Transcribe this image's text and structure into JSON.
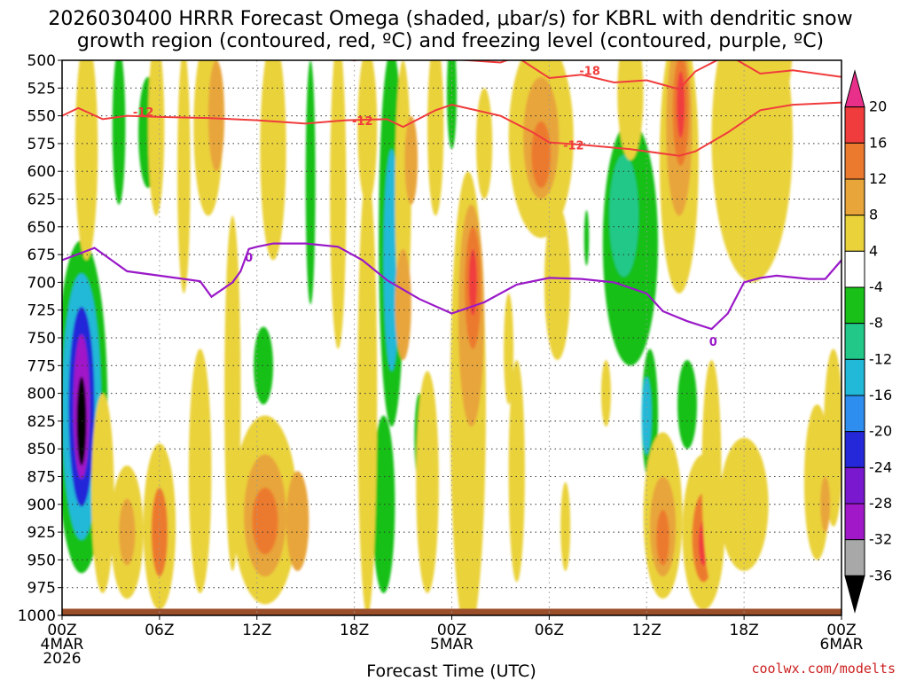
{
  "chart_data": {
    "type": "time-height contour",
    "title_line1": "2026030400 HRRR Forecast Omega (shaded, μbar/s) for KBRL with dendritic snow",
    "title_line2": "growth region (contoured, red, ºC) and freezing level (contoured, purple, ºC)",
    "xlabel": "Forecast Time (UTC)",
    "credit": "coolwx.com/modelts",
    "xlim": [
      0,
      48
    ],
    "ylim": [
      500,
      1000
    ],
    "y_ticks": [
      500,
      525,
      550,
      575,
      600,
      625,
      650,
      675,
      700,
      725,
      750,
      775,
      800,
      825,
      850,
      875,
      900,
      925,
      950,
      975,
      1000
    ],
    "x_ticks": [
      {
        "hour": 0,
        "line1": "00Z",
        "line2": "4MAR",
        "line3": "2026"
      },
      {
        "hour": 6,
        "line1": "06Z"
      },
      {
        "hour": 12,
        "line1": "12Z"
      },
      {
        "hour": 18,
        "line1": "18Z"
      },
      {
        "hour": 24,
        "line1": "00Z",
        "line2": "5MAR"
      },
      {
        "hour": 30,
        "line1": "06Z"
      },
      {
        "hour": 36,
        "line1": "12Z"
      },
      {
        "hour": 42,
        "line1": "18Z"
      },
      {
        "hour": 48,
        "line1": "00Z",
        "line2": "6MAR"
      }
    ],
    "colorbar": {
      "labels": [
        "20",
        "16",
        "12",
        "8",
        "4",
        "-4",
        "-8",
        "-12",
        "-16",
        "-20",
        "-24",
        "-28",
        "-32",
        "-36"
      ],
      "bins": [
        {
          "from": 20,
          "to": 24,
          "color": "#e8308a"
        },
        {
          "from": 16,
          "to": 20,
          "color": "#f03c3c"
        },
        {
          "from": 12,
          "to": 16,
          "color": "#ec7a2e"
        },
        {
          "from": 8,
          "to": 12,
          "color": "#e8a53a"
        },
        {
          "from": 4,
          "to": 8,
          "color": "#ead23a"
        },
        {
          "from": -4,
          "to": 4,
          "color": "#ffffff"
        },
        {
          "from": -8,
          "to": -4,
          "color": "#18c018"
        },
        {
          "from": -12,
          "to": -8,
          "color": "#22c888"
        },
        {
          "from": -16,
          "to": -12,
          "color": "#22b8d8"
        },
        {
          "from": -20,
          "to": -16,
          "color": "#2e8ef0"
        },
        {
          "from": -24,
          "to": -20,
          "color": "#2428d8"
        },
        {
          "from": -28,
          "to": -24,
          "color": "#7a18d0"
        },
        {
          "from": -32,
          "to": -28,
          "color": "#a018c8"
        },
        {
          "from": -36,
          "to": -32,
          "color": "#a8a8a8"
        },
        {
          "from": -40,
          "to": -36,
          "color": "#000000"
        }
      ]
    },
    "omega_regions": [
      {
        "hour": 1.2,
        "p": 812,
        "dh": 1.6,
        "dp": 150,
        "value": -8
      },
      {
        "hour": 1.2,
        "p": 812,
        "dh": 1.2,
        "dp": 120,
        "value": -16
      },
      {
        "hour": 1.2,
        "p": 812,
        "dh": 0.8,
        "dp": 90,
        "value": -24
      },
      {
        "hour": 1.2,
        "p": 812,
        "dh": 0.5,
        "dp": 65,
        "value": -32
      },
      {
        "hour": 1.2,
        "p": 825,
        "dh": 0.3,
        "dp": 40,
        "value": -40
      },
      {
        "hour": 3.5,
        "p": 560,
        "dh": 0.4,
        "dp": 70,
        "value": -6
      },
      {
        "hour": 5.3,
        "p": 565,
        "dh": 0.6,
        "dp": 50,
        "value": -6
      },
      {
        "hour": 12.4,
        "p": 775,
        "dh": 0.6,
        "dp": 35,
        "value": -6
      },
      {
        "hour": 15.3,
        "p": 610,
        "dh": 0.3,
        "dp": 110,
        "value": -6
      },
      {
        "hour": 20.3,
        "p": 660,
        "dh": 0.8,
        "dp": 170,
        "value": -8
      },
      {
        "hour": 20.3,
        "p": 680,
        "dh": 0.5,
        "dp": 100,
        "value": -14
      },
      {
        "hour": 19.8,
        "p": 900,
        "dh": 0.7,
        "dp": 80,
        "value": -6
      },
      {
        "hour": 22.0,
        "p": 840,
        "dh": 0.3,
        "dp": 40,
        "value": -6
      },
      {
        "hour": 24.0,
        "p": 530,
        "dh": 0.3,
        "dp": 50,
        "value": -6
      },
      {
        "hour": 35.0,
        "p": 665,
        "dh": 1.7,
        "dp": 110,
        "value": -6
      },
      {
        "hour": 34.6,
        "p": 640,
        "dh": 0.9,
        "dp": 55,
        "value": -10
      },
      {
        "hour": 36.2,
        "p": 820,
        "dh": 0.5,
        "dp": 60,
        "value": -6
      },
      {
        "hour": 36.0,
        "p": 820,
        "dh": 0.3,
        "dp": 35,
        "value": -14
      },
      {
        "hour": 38.5,
        "p": 810,
        "dh": 0.6,
        "dp": 40,
        "value": -6
      },
      {
        "hour": 32.3,
        "p": 660,
        "dh": 0.15,
        "dp": 25,
        "value": -6
      },
      {
        "hour": 1.5,
        "p": 580,
        "dh": 0.7,
        "dp": 100,
        "value": 6
      },
      {
        "hour": 2.5,
        "p": 890,
        "dh": 0.7,
        "dp": 90,
        "value": 6
      },
      {
        "hour": 5.8,
        "p": 560,
        "dh": 0.5,
        "dp": 80,
        "value": 6
      },
      {
        "hour": 4.0,
        "p": 925,
        "dh": 1.0,
        "dp": 60,
        "value": 6
      },
      {
        "hour": 4.0,
        "p": 925,
        "dh": 0.5,
        "dp": 30,
        "value": 10
      },
      {
        "hour": 6.0,
        "p": 920,
        "dh": 1.0,
        "dp": 75,
        "value": 6
      },
      {
        "hour": 6.0,
        "p": 925,
        "dh": 0.5,
        "dp": 40,
        "value": 12
      },
      {
        "hour": 7.5,
        "p": 600,
        "dh": 0.4,
        "dp": 110,
        "value": 6
      },
      {
        "hour": 9.0,
        "p": 560,
        "dh": 0.9,
        "dp": 80,
        "value": 6
      },
      {
        "hour": 9.5,
        "p": 550,
        "dh": 0.5,
        "dp": 50,
        "value": 10
      },
      {
        "hour": 8.5,
        "p": 870,
        "dh": 0.7,
        "dp": 110,
        "value": 6
      },
      {
        "hour": 10.5,
        "p": 800,
        "dh": 0.5,
        "dp": 160,
        "value": 6
      },
      {
        "hour": 13.0,
        "p": 580,
        "dh": 0.8,
        "dp": 100,
        "value": 6
      },
      {
        "hour": 12.5,
        "p": 905,
        "dh": 2.0,
        "dp": 85,
        "value": 6
      },
      {
        "hour": 12.5,
        "p": 910,
        "dh": 1.3,
        "dp": 55,
        "value": 10
      },
      {
        "hour": 12.5,
        "p": 915,
        "dh": 0.8,
        "dp": 30,
        "value": 14
      },
      {
        "hour": 14.5,
        "p": 915,
        "dh": 0.7,
        "dp": 45,
        "value": 10
      },
      {
        "hour": 17.0,
        "p": 620,
        "dh": 0.5,
        "dp": 140,
        "value": 6
      },
      {
        "hour": 18.8,
        "p": 800,
        "dh": 0.6,
        "dp": 200,
        "value": 6
      },
      {
        "hour": 18.8,
        "p": 560,
        "dh": 0.6,
        "dp": 70,
        "value": 6
      },
      {
        "hour": 21.0,
        "p": 620,
        "dh": 0.5,
        "dp": 120,
        "value": 6
      },
      {
        "hour": 21.5,
        "p": 590,
        "dh": 0.4,
        "dp": 40,
        "value": 10
      },
      {
        "hour": 21.0,
        "p": 720,
        "dh": 0.5,
        "dp": 50,
        "value": 10
      },
      {
        "hour": 23.0,
        "p": 560,
        "dh": 0.5,
        "dp": 80,
        "value": 6
      },
      {
        "hour": 22.5,
        "p": 880,
        "dh": 0.7,
        "dp": 100,
        "value": 6
      },
      {
        "hour": 25.0,
        "p": 810,
        "dh": 1.1,
        "dp": 210,
        "value": 6
      },
      {
        "hour": 25.2,
        "p": 730,
        "dh": 0.8,
        "dp": 100,
        "value": 10
      },
      {
        "hour": 25.3,
        "p": 705,
        "dh": 0.5,
        "dp": 55,
        "value": 14
      },
      {
        "hour": 25.3,
        "p": 700,
        "dh": 0.25,
        "dp": 30,
        "value": 18
      },
      {
        "hour": 26.0,
        "p": 575,
        "dh": 0.5,
        "dp": 50,
        "value": 6
      },
      {
        "hour": 29.5,
        "p": 570,
        "dh": 2.0,
        "dp": 90,
        "value": 6
      },
      {
        "hour": 29.5,
        "p": 570,
        "dh": 1.1,
        "dp": 55,
        "value": 10
      },
      {
        "hour": 29.5,
        "p": 585,
        "dh": 0.6,
        "dp": 30,
        "value": 14
      },
      {
        "hour": 30.5,
        "p": 700,
        "dh": 0.8,
        "dp": 70,
        "value": 6
      },
      {
        "hour": 28.0,
        "p": 870,
        "dh": 0.5,
        "dp": 100,
        "value": 6
      },
      {
        "hour": 31.0,
        "p": 920,
        "dh": 0.3,
        "dp": 40,
        "value": 6
      },
      {
        "hour": 35.0,
        "p": 530,
        "dh": 0.8,
        "dp": 60,
        "value": 6
      },
      {
        "hour": 38.0,
        "p": 590,
        "dh": 1.2,
        "dp": 120,
        "value": 6
      },
      {
        "hour": 38.0,
        "p": 560,
        "dh": 0.8,
        "dp": 80,
        "value": 10
      },
      {
        "hour": 38.1,
        "p": 545,
        "dh": 0.5,
        "dp": 50,
        "value": 14
      },
      {
        "hour": 38.1,
        "p": 540,
        "dh": 0.25,
        "dp": 30,
        "value": 18
      },
      {
        "hour": 37.0,
        "p": 910,
        "dh": 1.2,
        "dp": 75,
        "value": 6
      },
      {
        "hour": 37.0,
        "p": 920,
        "dh": 0.8,
        "dp": 45,
        "value": 10
      },
      {
        "hour": 37.0,
        "p": 930,
        "dh": 0.4,
        "dp": 25,
        "value": 14
      },
      {
        "hour": 39.5,
        "p": 925,
        "dh": 1.3,
        "dp": 70,
        "value": 6
      },
      {
        "hour": 39.5,
        "p": 930,
        "dh": 0.7,
        "dp": 40,
        "value": 12
      },
      {
        "hour": 39.5,
        "p": 935,
        "dh": 0.3,
        "dp": 20,
        "value": 18
      },
      {
        "hour": 40.0,
        "p": 870,
        "dh": 0.6,
        "dp": 100,
        "value": 6
      },
      {
        "hour": 42.5,
        "p": 570,
        "dh": 2.5,
        "dp": 130,
        "value": 6
      },
      {
        "hour": 43.5,
        "p": 480,
        "dh": 1.5,
        "dp": 80,
        "value": 6
      },
      {
        "hour": 42.0,
        "p": 900,
        "dh": 1.5,
        "dp": 60,
        "value": 6
      },
      {
        "hour": 46.5,
        "p": 880,
        "dh": 0.8,
        "dp": 70,
        "value": 6
      },
      {
        "hour": 47.5,
        "p": 840,
        "dh": 0.6,
        "dp": 80,
        "value": 6
      },
      {
        "hour": 47.0,
        "p": 900,
        "dh": 0.3,
        "dp": 25,
        "value": 10
      },
      {
        "hour": 27.5,
        "p": 760,
        "dh": 0.3,
        "dp": 50,
        "value": 6
      },
      {
        "hour": 33.5,
        "p": 800,
        "dh": 0.3,
        "dp": 30,
        "value": 6
      }
    ],
    "dgz_contours": [
      {
        "label": "-12",
        "label_at": [
          5.0,
          547
        ],
        "points": [
          [
            0,
            550
          ],
          [
            1,
            543
          ],
          [
            2.5,
            553
          ],
          [
            4,
            550
          ],
          [
            6,
            551
          ],
          [
            9,
            552
          ],
          [
            12,
            554
          ],
          [
            15,
            557
          ],
          [
            17.5,
            554
          ],
          [
            20,
            553
          ],
          [
            21,
            560
          ],
          [
            23,
            545
          ],
          [
            24,
            540
          ],
          [
            27,
            550
          ],
          [
            29,
            565
          ],
          [
            30,
            574
          ],
          [
            32,
            576
          ],
          [
            35,
            580
          ],
          [
            38,
            586
          ],
          [
            39,
            582
          ],
          [
            41,
            565
          ],
          [
            43,
            545
          ],
          [
            45,
            540
          ],
          [
            48,
            538
          ]
        ]
      },
      {
        "label": "-12",
        "label_at": [
          31.5,
          577
        ],
        "label_only": true,
        "points": []
      },
      {
        "label": "-12",
        "label_at": [
          18.5,
          555
        ],
        "label_only": true,
        "points": []
      },
      {
        "label": "-18",
        "label_at": [
          32.5,
          510
        ],
        "points": [
          [
            6,
            496
          ],
          [
            8,
            499
          ],
          [
            12,
            499
          ],
          [
            16,
            497
          ],
          [
            18,
            500
          ],
          [
            20,
            496
          ],
          [
            22,
            497
          ],
          [
            25,
            500
          ],
          [
            27,
            502
          ],
          [
            28,
            497
          ],
          [
            30,
            516
          ],
          [
            32,
            513
          ],
          [
            34,
            520
          ],
          [
            36,
            518
          ],
          [
            38,
            526
          ],
          [
            39,
            510
          ],
          [
            41,
            495
          ]
        ]
      },
      {
        "label": "",
        "points": [
          [
            41,
            495
          ],
          [
            43,
            512
          ],
          [
            45,
            509
          ],
          [
            48,
            515
          ]
        ]
      }
    ],
    "freezing_level": {
      "label": "0",
      "label_at": [
        11.5,
        678
      ],
      "label_at2": [
        40.1,
        754
      ],
      "points": [
        [
          0,
          680
        ],
        [
          2,
          669
        ],
        [
          4,
          690
        ],
        [
          7,
          696
        ],
        [
          8.5,
          699
        ],
        [
          9.2,
          713
        ],
        [
          10.5,
          700
        ],
        [
          11,
          690
        ],
        [
          11.5,
          670
        ],
        [
          12,
          668
        ],
        [
          13,
          665
        ],
        [
          15,
          665
        ],
        [
          17,
          668
        ],
        [
          18.5,
          680
        ],
        [
          20,
          698
        ],
        [
          22,
          715
        ],
        [
          24,
          728
        ],
        [
          26,
          718
        ],
        [
          28,
          702
        ],
        [
          30,
          696
        ],
        [
          32,
          697
        ],
        [
          34,
          700
        ],
        [
          36,
          710
        ],
        [
          37,
          726
        ],
        [
          38.5,
          735
        ],
        [
          40,
          742
        ],
        [
          41,
          728
        ],
        [
          42,
          700
        ],
        [
          43,
          696
        ],
        [
          44,
          694
        ],
        [
          46,
          697
        ],
        [
          47,
          697
        ],
        [
          48,
          680
        ]
      ]
    }
  }
}
